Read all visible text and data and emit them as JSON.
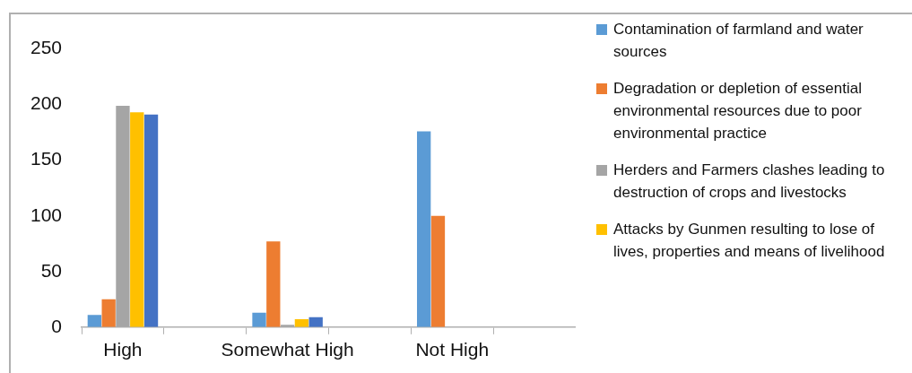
{
  "chart_data": {
    "type": "bar",
    "categories": [
      "High",
      null,
      "Somewhat High",
      null,
      "Not High",
      null
    ],
    "series": [
      {
        "name": "Contamination of farmland and water sources",
        "color": "#5b9bd5",
        "values": [
          11,
          0,
          13,
          0,
          176,
          null
        ]
      },
      {
        "name": "Degradation or depletion of essential environmental resources due to poor environmental practice",
        "color": "#ed7d31",
        "values": [
          25,
          0,
          77,
          0,
          100,
          0
        ]
      },
      {
        "name": "Herders and Farmers clashes leading to destruction of crops and livestocks",
        "color": "#a5a5a5",
        "values": [
          199,
          null,
          2,
          0,
          0,
          0
        ]
      },
      {
        "name": "Attacks by Gunmen resulting to lose of lives, properties and means of livelihood",
        "color": "#ffc000",
        "values": [
          193,
          null,
          7,
          0,
          0,
          0
        ]
      },
      {
        "color": "#4472c4",
        "values": [
          191,
          null,
          9,
          0,
          0,
          0
        ]
      }
    ],
    "ylim": [
      0,
      250
    ],
    "yticks": [
      0,
      50,
      100,
      150,
      200,
      250
    ],
    "grid": false,
    "legend": "right"
  }
}
